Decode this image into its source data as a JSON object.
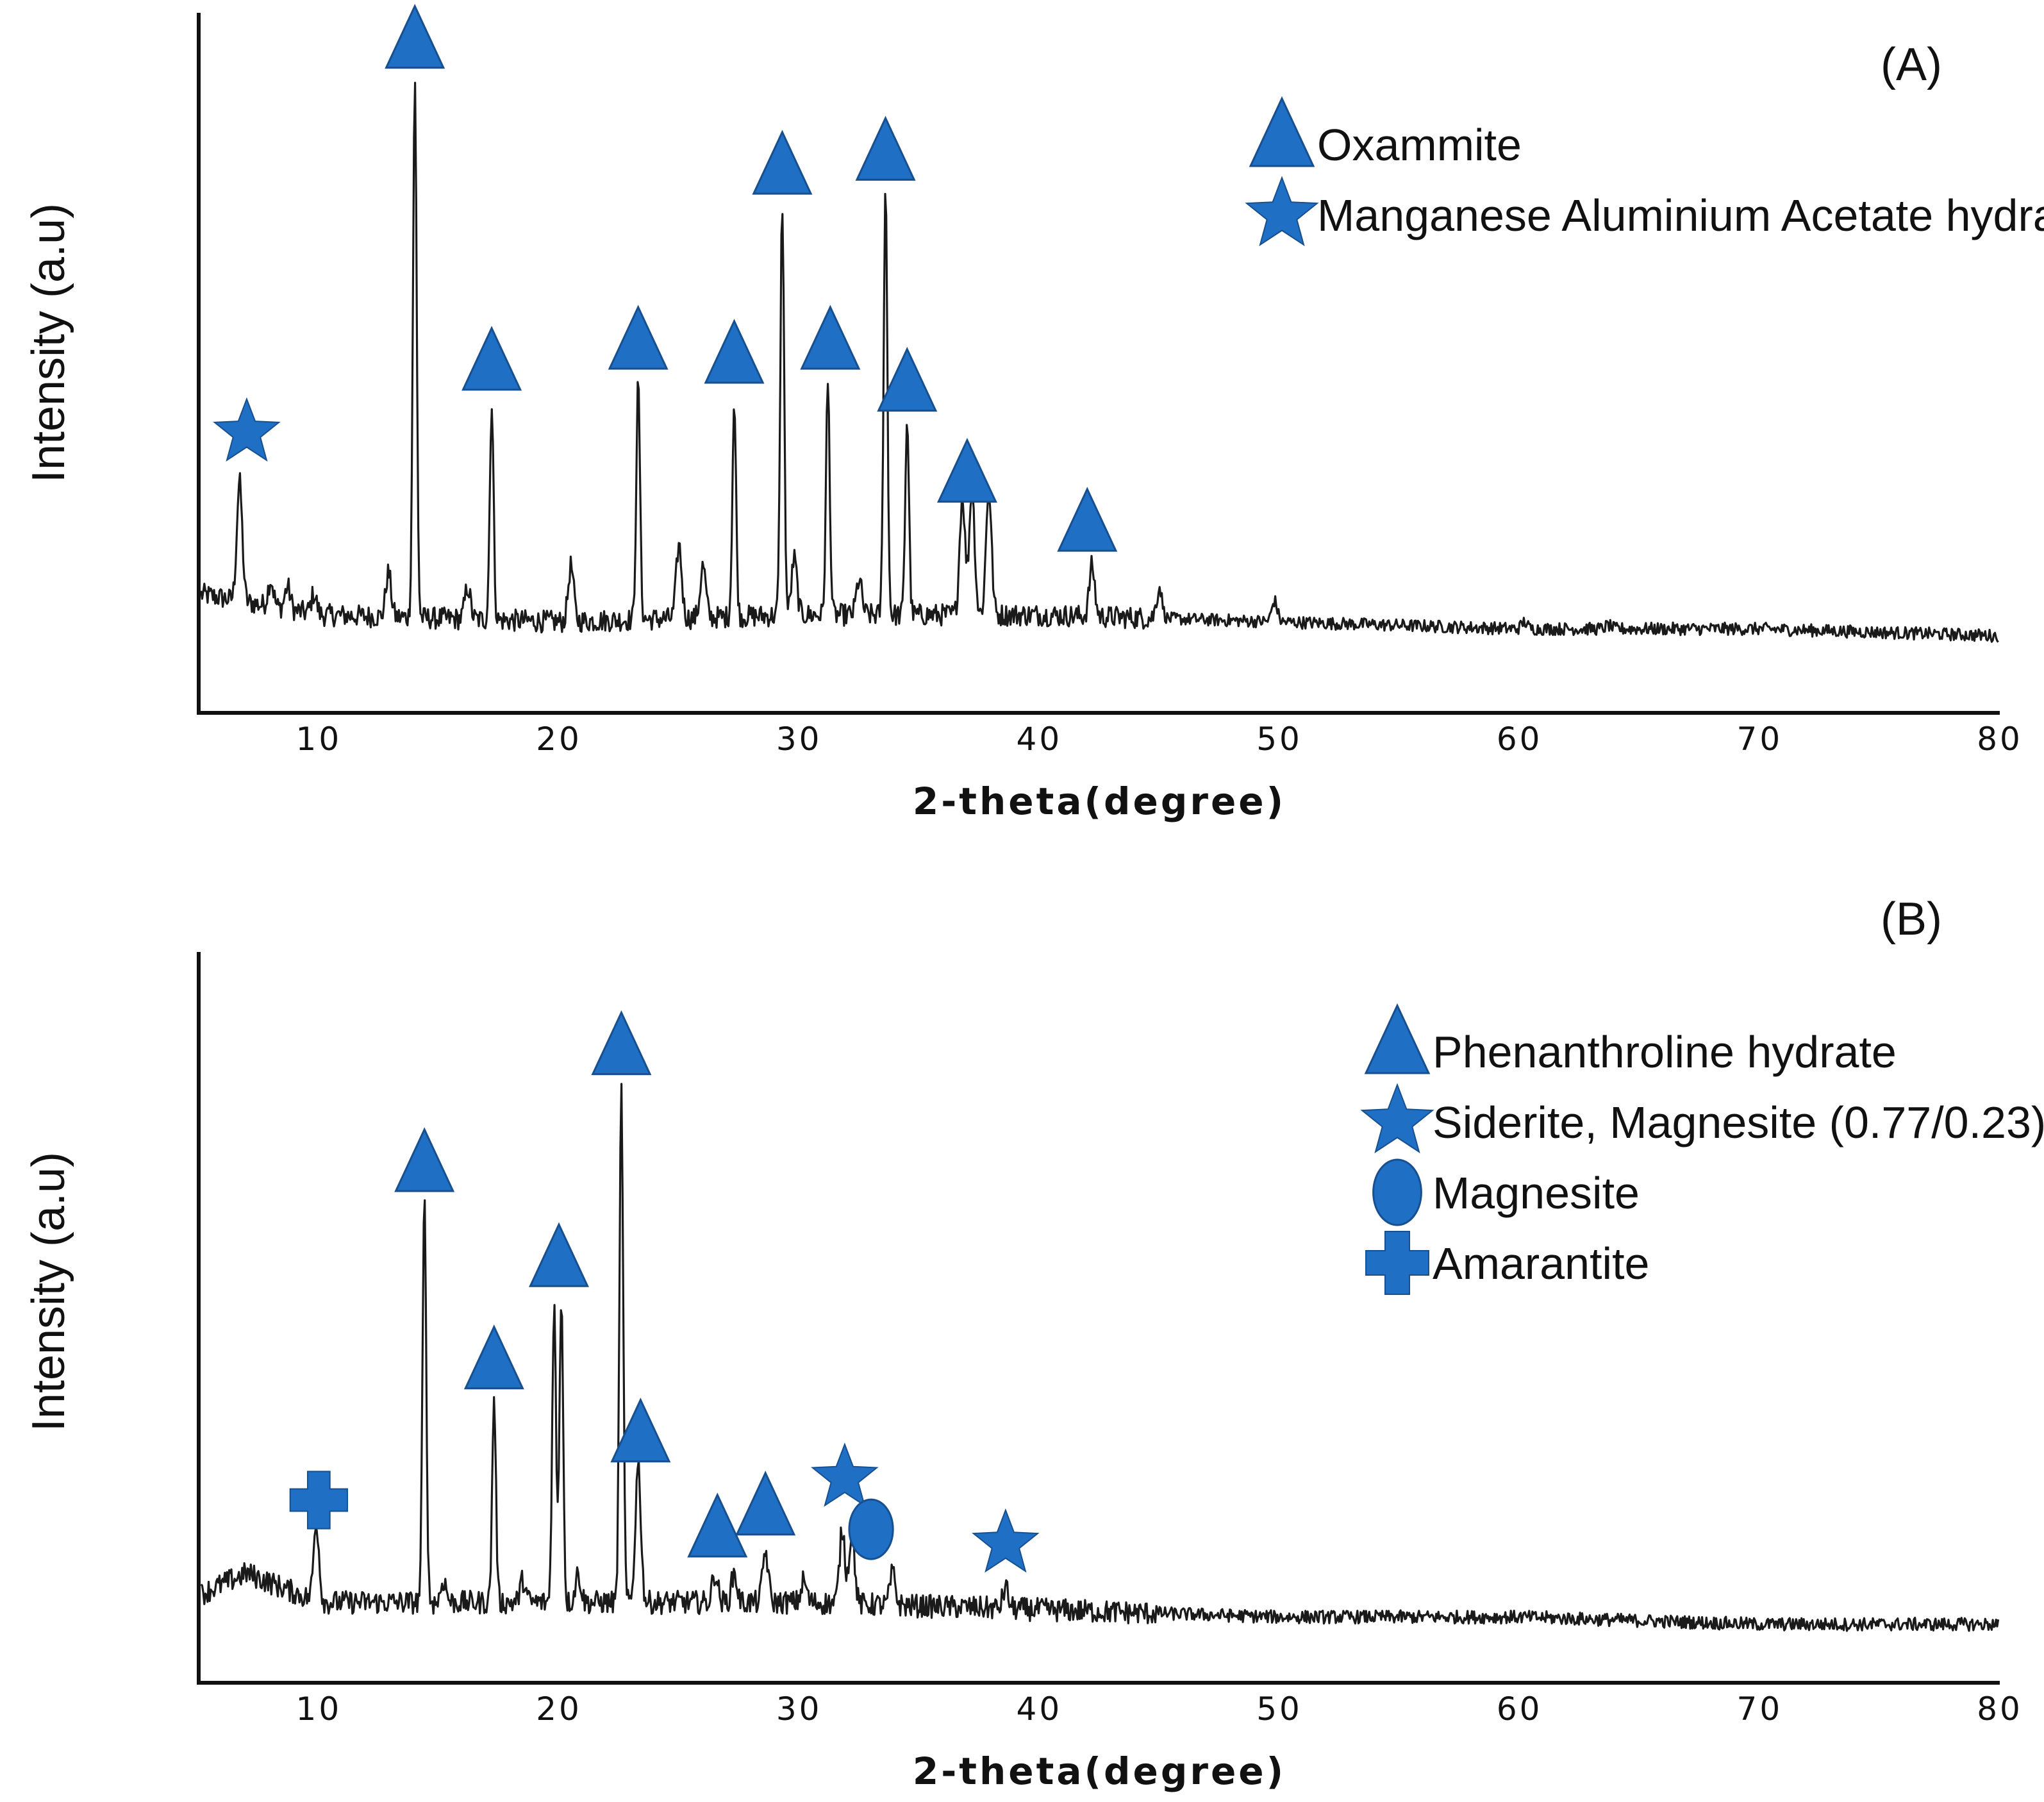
{
  "chart_data": [
    {
      "type": "line",
      "panel_label": "(A)",
      "xlabel": "2-theta(degree)",
      "ylabel": "Intensity (a.u)",
      "xlim": [
        5,
        80
      ],
      "ylim": [
        0,
        100
      ],
      "xticks": [
        10,
        20,
        30,
        40,
        50,
        60,
        70,
        80
      ],
      "baseline": {
        "x": [
          5,
          10,
          20,
          30,
          40,
          50,
          60,
          70,
          80
        ],
        "y": [
          17,
          14,
          13,
          14,
          14,
          13,
          12,
          12,
          11
        ]
      },
      "peaks": [
        {
          "x": 6.7,
          "y": 33
        },
        {
          "x": 8.0,
          "y": 19
        },
        {
          "x": 8.7,
          "y": 18
        },
        {
          "x": 9.8,
          "y": 17
        },
        {
          "x": 12.9,
          "y": 20
        },
        {
          "x": 14.0,
          "y": 90
        },
        {
          "x": 16.2,
          "y": 18
        },
        {
          "x": 17.2,
          "y": 44
        },
        {
          "x": 20.5,
          "y": 21
        },
        {
          "x": 23.3,
          "y": 47
        },
        {
          "x": 25.0,
          "y": 24
        },
        {
          "x": 26.0,
          "y": 21
        },
        {
          "x": 27.3,
          "y": 44
        },
        {
          "x": 29.3,
          "y": 73
        },
        {
          "x": 29.8,
          "y": 22
        },
        {
          "x": 31.2,
          "y": 47
        },
        {
          "x": 32.5,
          "y": 19
        },
        {
          "x": 33.6,
          "y": 75
        },
        {
          "x": 34.5,
          "y": 42
        },
        {
          "x": 36.8,
          "y": 31
        },
        {
          "x": 37.2,
          "y": 32
        },
        {
          "x": 37.9,
          "y": 32
        },
        {
          "x": 42.2,
          "y": 21
        },
        {
          "x": 45.0,
          "y": 18
        },
        {
          "x": 49.8,
          "y": 16
        },
        {
          "x": 60.2,
          "y": 13
        },
        {
          "x": 63.7,
          "y": 12.5
        }
      ],
      "markers": [
        {
          "x": 7.0,
          "y": 40,
          "symbol": "star"
        },
        {
          "x": 14.0,
          "y": 95,
          "symbol": "triangle"
        },
        {
          "x": 17.2,
          "y": 49,
          "symbol": "triangle"
        },
        {
          "x": 23.3,
          "y": 52,
          "symbol": "triangle"
        },
        {
          "x": 27.3,
          "y": 50,
          "symbol": "triangle"
        },
        {
          "x": 29.3,
          "y": 77,
          "symbol": "triangle"
        },
        {
          "x": 31.3,
          "y": 52,
          "symbol": "triangle"
        },
        {
          "x": 33.6,
          "y": 79,
          "symbol": "triangle"
        },
        {
          "x": 34.5,
          "y": 46,
          "symbol": "triangle"
        },
        {
          "x": 37.0,
          "y": 33,
          "symbol": "triangle"
        },
        {
          "x": 42.0,
          "y": 26,
          "symbol": "triangle"
        }
      ],
      "legend": [
        {
          "symbol": "triangle",
          "label": "Oxammite"
        },
        {
          "symbol": "star",
          "label": "Manganese Aluminium Acetate hydrate"
        }
      ],
      "legend_position": "top-right",
      "marker_color": "#1f6fc5"
    },
    {
      "type": "line",
      "panel_label": "(B)",
      "xlabel": "2-theta(degree)",
      "ylabel": "Intensity (a.u)",
      "xlim": [
        5,
        80
      ],
      "ylim": [
        0,
        100
      ],
      "xticks": [
        10,
        20,
        30,
        40,
        50,
        60,
        70,
        80
      ],
      "baseline": {
        "x": [
          5,
          7,
          10,
          20,
          30,
          40,
          50,
          60,
          70,
          80
        ],
        "y": [
          12,
          15,
          11,
          11,
          11,
          10,
          9,
          9,
          8,
          8
        ]
      },
      "peaks": [
        {
          "x": 9.9,
          "y": 22
        },
        {
          "x": 14.4,
          "y": 66
        },
        {
          "x": 15.2,
          "y": 14
        },
        {
          "x": 17.3,
          "y": 39
        },
        {
          "x": 18.5,
          "y": 14
        },
        {
          "x": 19.8,
          "y": 52
        },
        {
          "x": 20.1,
          "y": 53
        },
        {
          "x": 20.8,
          "y": 15
        },
        {
          "x": 22.6,
          "y": 81
        },
        {
          "x": 23.3,
          "y": 30
        },
        {
          "x": 26.5,
          "y": 15
        },
        {
          "x": 27.3,
          "y": 15
        },
        {
          "x": 28.6,
          "y": 18
        },
        {
          "x": 30.2,
          "y": 14
        },
        {
          "x": 31.8,
          "y": 21
        },
        {
          "x": 32.2,
          "y": 21
        },
        {
          "x": 33.9,
          "y": 15
        },
        {
          "x": 38.6,
          "y": 13
        }
      ],
      "markers": [
        {
          "x": 10.0,
          "y": 25,
          "symbol": "cross"
        },
        {
          "x": 14.4,
          "y": 70,
          "symbol": "triangle"
        },
        {
          "x": 17.3,
          "y": 43,
          "symbol": "triangle"
        },
        {
          "x": 20.0,
          "y": 57,
          "symbol": "triangle"
        },
        {
          "x": 22.6,
          "y": 86,
          "symbol": "triangle"
        },
        {
          "x": 23.4,
          "y": 33,
          "symbol": "triangle"
        },
        {
          "x": 26.6,
          "y": 20,
          "symbol": "triangle"
        },
        {
          "x": 28.6,
          "y": 23,
          "symbol": "triangle"
        },
        {
          "x": 31.9,
          "y": 28,
          "symbol": "star"
        },
        {
          "x": 33.0,
          "y": 21,
          "symbol": "circle"
        },
        {
          "x": 38.6,
          "y": 19,
          "symbol": "star"
        }
      ],
      "legend": [
        {
          "symbol": "triangle",
          "label": "Phenanthroline hydrate"
        },
        {
          "symbol": "star",
          "label": "Siderite, Magnesite (0.77/0.23)"
        },
        {
          "symbol": "circle",
          "label": "Magnesite"
        },
        {
          "symbol": "cross",
          "label": "Amarantite"
        }
      ],
      "legend_position": "top-right",
      "marker_color": "#1f6fc5"
    }
  ]
}
